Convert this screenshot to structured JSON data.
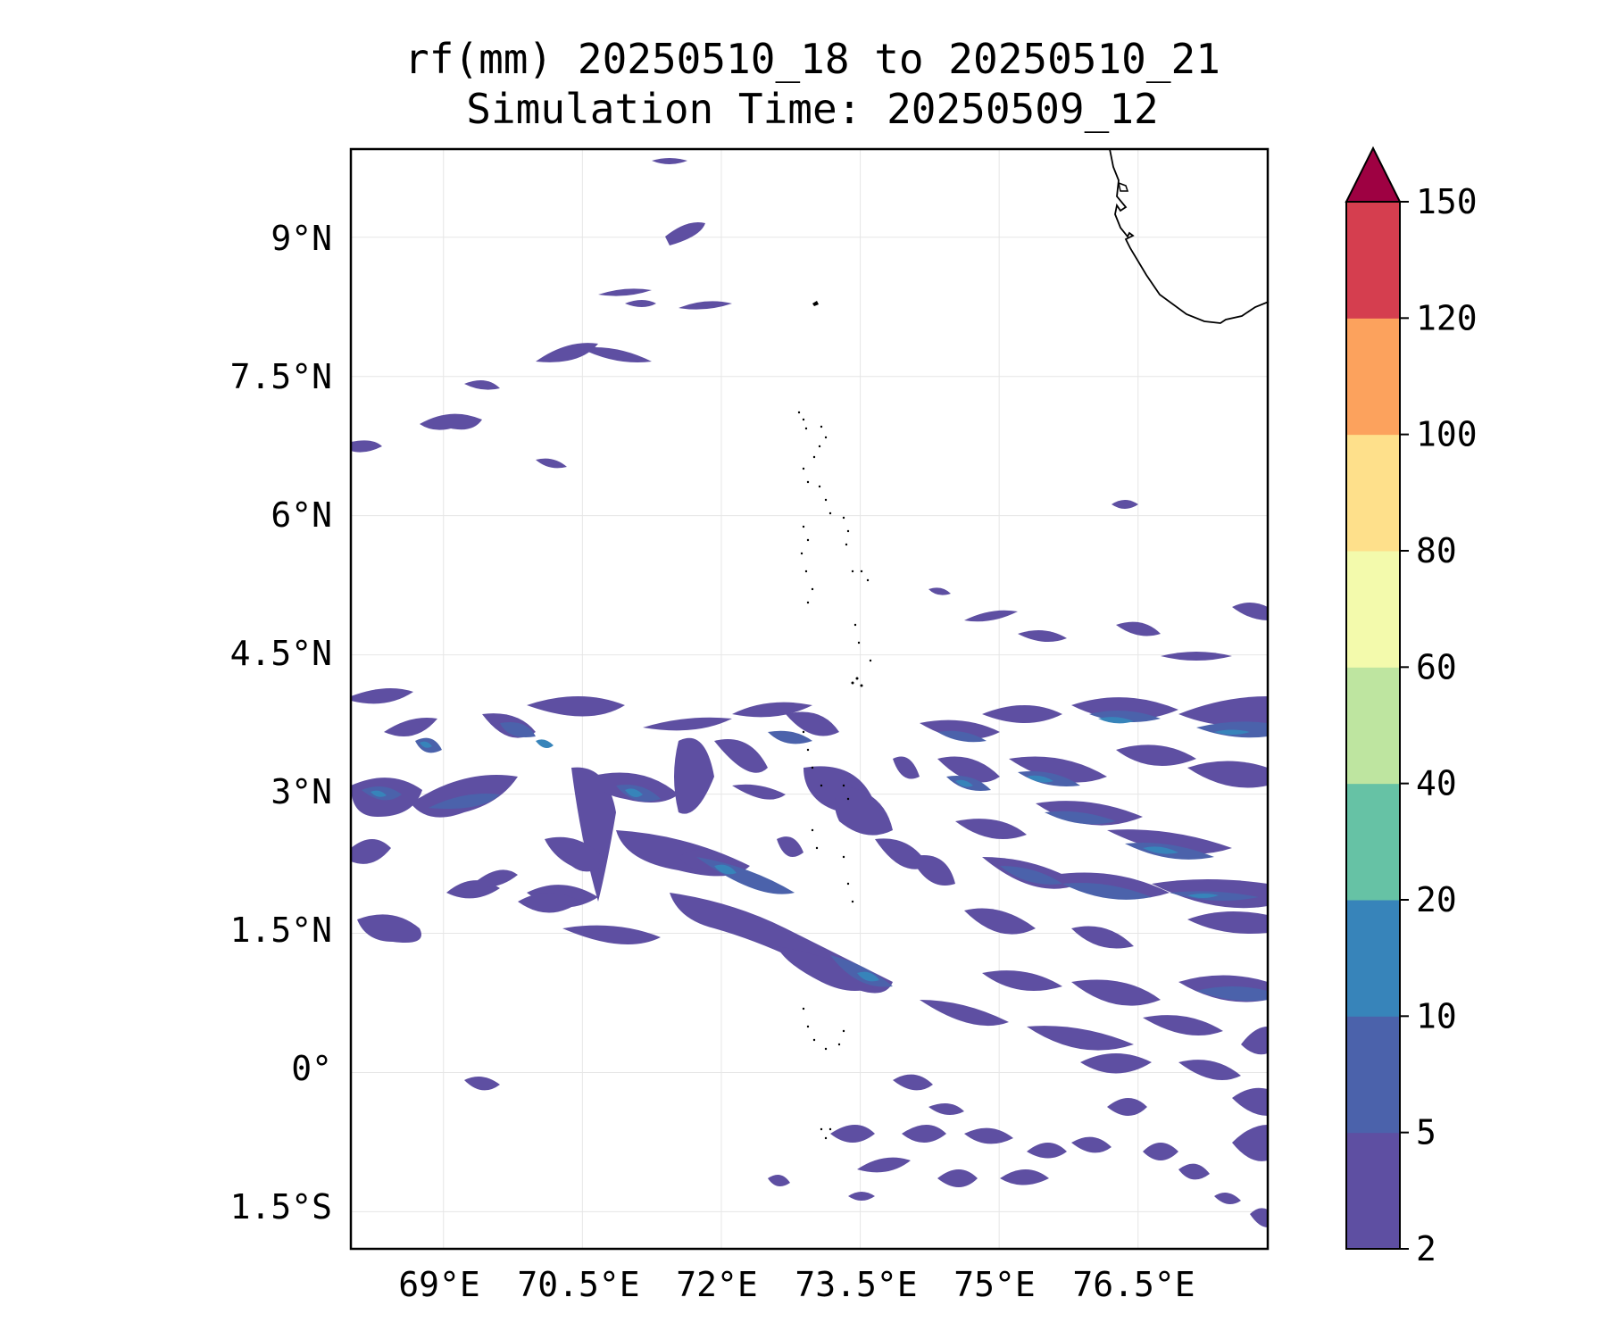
{
  "title": {
    "line1": "rf(mm) 20250510_18 to 20250510_21",
    "line2": "Simulation Time: 20250509_12"
  },
  "map": {
    "lon_ticks": [
      "69°E",
      "70.5°E",
      "72°E",
      "73.5°E",
      "75°E",
      "76.5°E"
    ],
    "lat_ticks": [
      "9°N",
      "7.5°N",
      "6°N",
      "4.5°N",
      "3°N",
      "1.5°N",
      "0°",
      "1.5°S"
    ],
    "lon_range": [
      68.0,
      77.9
    ],
    "lat_range": [
      -1.9,
      9.95
    ],
    "gridlines": true,
    "coastline_color": "#000000"
  },
  "colorbar": {
    "variable": "rf(mm)",
    "levels": [
      "2",
      "5",
      "10",
      "20",
      "40",
      "60",
      "80",
      "100",
      "120",
      "150"
    ],
    "colors": [
      "#5e4fa2",
      "#4b62ab",
      "#3784ba",
      "#66c2a5",
      "#bee5a0",
      "#f3faac",
      "#fee08b",
      "#fca25d",
      "#d53e4f",
      "#9e0142"
    ],
    "extend": "max"
  }
}
